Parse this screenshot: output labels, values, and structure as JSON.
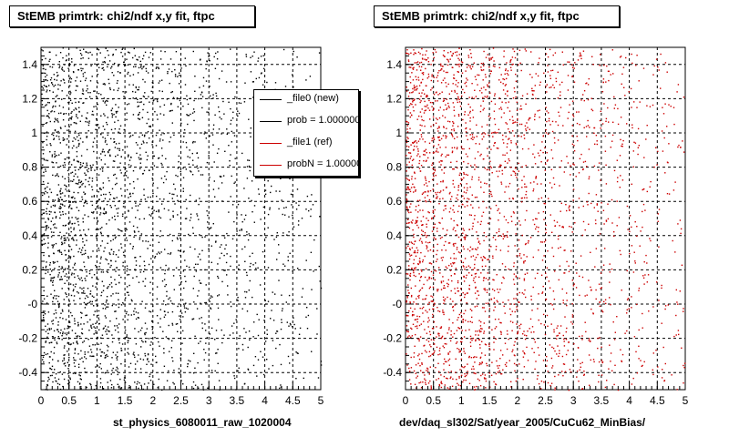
{
  "panels": [
    {
      "title": "StEMB primtrk: chi2/ndf x,y fit, ftpc",
      "file_label": "st_physics_6080011_raw_1020004",
      "marker_color": "#000000",
      "legend": [
        {
          "label": "_file0 (new)",
          "color": "#000000"
        },
        {
          "label": "prob = 1.000000",
          "color": "#000000"
        },
        {
          "label": "_file1 (ref)",
          "color": "#cc0000"
        },
        {
          "label": "probN = 1.000000",
          "color": "#cc0000"
        }
      ]
    },
    {
      "title": "StEMB primtrk: chi2/ndf x,y fit, ftpc",
      "file_label": "dev/daq_sl302/Sat/year_2005/CuCu62_MinBias/",
      "marker_color": "#cc0000"
    }
  ],
  "chart_data": [
    {
      "type": "scatter",
      "title": "StEMB primtrk: chi2/ndf x,y fit, ftpc",
      "xlabel": "st_physics_6080011_raw_1020004",
      "ylabel": "",
      "xlim": [
        0,
        5
      ],
      "ylim": [
        -0.5,
        1.5
      ],
      "x_ticks": [
        "0",
        "0.5",
        "1",
        "1.5",
        "2",
        "2.5",
        "3",
        "3.5",
        "4",
        "4.5",
        "5"
      ],
      "y_ticks": [
        "-0.4",
        "-0.2",
        "-0",
        "0.2",
        "0.4",
        "0.6",
        "0.8",
        "1",
        "1.2",
        "1.4"
      ],
      "grid": true,
      "series": [
        {
          "name": "_file0 (new)",
          "color": "#000000",
          "density": "uniform in y, decreasing with x, denser for x < 2"
        }
      ],
      "legend_position": "top-right"
    },
    {
      "type": "scatter",
      "title": "StEMB primtrk: chi2/ndf x,y fit, ftpc",
      "xlabel": "dev/daq_sl302/Sat/year_2005/CuCu62_MinBias/",
      "ylabel": "",
      "xlim": [
        0,
        5
      ],
      "ylim": [
        -0.5,
        1.5
      ],
      "x_ticks": [
        "0",
        "0.5",
        "1",
        "1.5",
        "2",
        "2.5",
        "3",
        "3.5",
        "4",
        "4.5",
        "5"
      ],
      "y_ticks": [
        "-0.4",
        "-0.2",
        "-0",
        "0.2",
        "0.4",
        "0.6",
        "0.8",
        "1",
        "1.2",
        "1.4"
      ],
      "grid": true,
      "series": [
        {
          "name": "_file1 (ref)",
          "color": "#cc0000",
          "density": "uniform in y, decreasing with x, denser for x < 2"
        }
      ]
    }
  ]
}
